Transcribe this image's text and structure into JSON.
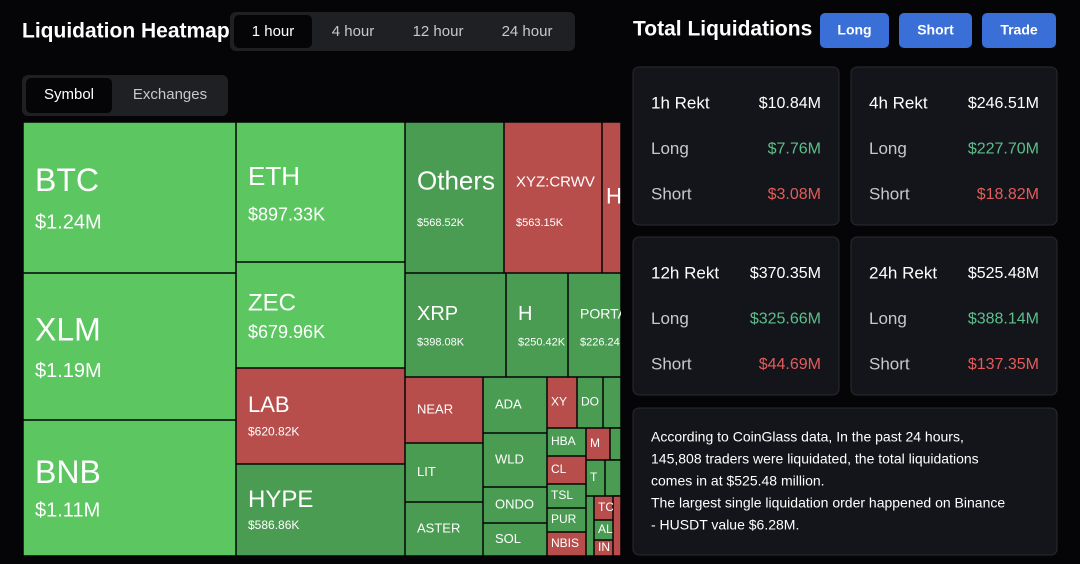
{
  "header": {
    "title": "Liquidation Heatmap",
    "time_tabs": [
      "1 hour",
      "4 hour",
      "12 hour",
      "24 hour"
    ],
    "view_tabs": [
      "Symbol",
      "Exchanges"
    ]
  },
  "heatmap": {
    "cells": [
      {
        "label": "BTC",
        "value": "$1.24M"
      },
      {
        "label": "XLM",
        "value": "$1.19M"
      },
      {
        "label": "BNB",
        "value": "$1.11M"
      },
      {
        "label": "ETH",
        "value": "$897.33K"
      },
      {
        "label": "ZEC",
        "value": "$679.96K"
      },
      {
        "label": "LAB",
        "value": "$620.82K"
      },
      {
        "label": "HYPE",
        "value": "$586.86K"
      },
      {
        "label": "Others",
        "value": "$568.52K"
      },
      {
        "label": "XYZ:CRWV",
        "value": "$563.15K"
      },
      {
        "label": "H"
      },
      {
        "label": "XRP",
        "value": "$398.08K"
      },
      {
        "label": "H",
        "value": "$250.42K"
      },
      {
        "label": "PORTA",
        "value": "$226.24"
      },
      {
        "label": "NEAR"
      },
      {
        "label": "LIT"
      },
      {
        "label": "ASTER"
      },
      {
        "label": "ADA"
      },
      {
        "label": "WLD"
      },
      {
        "label": "ONDO"
      },
      {
        "label": "SOL"
      },
      {
        "label": "XY"
      },
      {
        "label": "DO"
      },
      {
        "label": "HBA"
      },
      {
        "label": "M"
      },
      {
        "label": "CL"
      },
      {
        "label": "T"
      },
      {
        "label": "TSL"
      },
      {
        "label": "TC"
      },
      {
        "label": "PUR"
      },
      {
        "label": "AL"
      },
      {
        "label": "NBIS"
      },
      {
        "label": "IN"
      }
    ]
  },
  "totals": {
    "title": "Total Liquidations",
    "buttons": [
      "Long",
      "Short",
      "Trade"
    ],
    "cards": [
      [
        [
          "1h Rekt",
          "$10.84M"
        ],
        [
          "Long",
          "$7.76M"
        ],
        [
          "Short",
          "$3.08M"
        ]
      ],
      [
        [
          "4h Rekt",
          "$246.51M"
        ],
        [
          "Long",
          "$227.70M"
        ],
        [
          "Short",
          "$18.82M"
        ]
      ],
      [
        [
          "12h Rekt",
          "$370.35M"
        ],
        [
          "Long",
          "$325.66M"
        ],
        [
          "Short",
          "$44.69M"
        ]
      ],
      [
        [
          "24h Rekt",
          "$525.48M"
        ],
        [
          "Long",
          "$388.14M"
        ],
        [
          "Short",
          "$137.35M"
        ]
      ]
    ],
    "info": [
      "According to CoinGlass data, In the past 24 hours,",
      "145,808 traders were liquidated, the total liquidations",
      "comes in at $525.48 million.",
      "The largest single liquidation order happened on Binance",
      "- HUSDT value $6.28M."
    ]
  }
}
